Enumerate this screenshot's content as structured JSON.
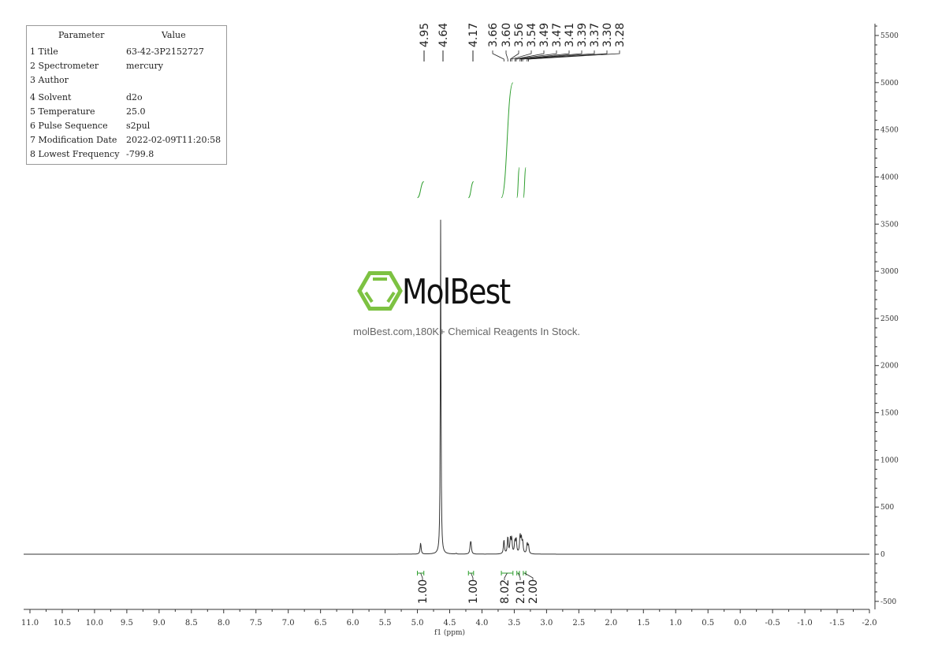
{
  "parameters": {
    "header": [
      "Parameter",
      "Value"
    ],
    "rows": [
      [
        "1 Title",
        "63-42-3P2152727"
      ],
      [
        "2 Spectrometer",
        "mercury"
      ],
      [
        "3 Author",
        ""
      ],
      [
        "4 Solvent",
        "d2o"
      ],
      [
        "5 Temperature",
        "25.0"
      ],
      [
        "6 Pulse Sequence",
        "s2pul"
      ],
      [
        "7 Modification Date",
        "2022-02-09T11:20:58"
      ],
      [
        "8 Lowest Frequency",
        "-799.8"
      ]
    ]
  },
  "watermark": {
    "brand": "MolBest",
    "tagline": "molBest.com,180K+ Chemical Reagents In Stock.",
    "brand_color": "#7dc242"
  },
  "chart_data": {
    "type": "line",
    "xlabel": "f1 (ppm)",
    "ylabel": "",
    "xlim": [
      11.0,
      -2.0
    ],
    "ylim": [
      -600,
      5600
    ],
    "x_ticks": [
      "11.0",
      "10.5",
      "10.0",
      "9.5",
      "9.0",
      "8.5",
      "8.0",
      "7.5",
      "7.0",
      "6.5",
      "6.0",
      "5.5",
      "5.0",
      "4.5",
      "4.0",
      "3.5",
      "3.0",
      "2.5",
      "2.0",
      "1.5",
      "1.0",
      "0.5",
      "0.0",
      "-0.5",
      "-1.0",
      "-1.5",
      "-2.0"
    ],
    "y_ticks": [
      "-500",
      "0",
      "500",
      "1000",
      "1500",
      "2000",
      "2500",
      "3000",
      "3500",
      "4000",
      "4500",
      "5000",
      "5500"
    ],
    "peak_labels": [
      "4.95",
      "4.64",
      "4.17",
      "3.66",
      "3.60",
      "3.56",
      "3.54",
      "3.49",
      "3.47",
      "3.41",
      "3.39",
      "3.37",
      "3.30",
      "3.28"
    ],
    "peaks": [
      {
        "ppm": 4.95,
        "height": 120
      },
      {
        "ppm": 4.64,
        "height": 3560
      },
      {
        "ppm": 4.4,
        "height": 8
      },
      {
        "ppm": 4.18,
        "height": 80
      },
      {
        "ppm": 4.17,
        "height": 95
      },
      {
        "ppm": 3.66,
        "height": 150
      },
      {
        "ppm": 3.6,
        "height": 180
      },
      {
        "ppm": 3.56,
        "height": 150
      },
      {
        "ppm": 3.54,
        "height": 160
      },
      {
        "ppm": 3.49,
        "height": 130
      },
      {
        "ppm": 3.47,
        "height": 150
      },
      {
        "ppm": 3.41,
        "height": 190
      },
      {
        "ppm": 3.39,
        "height": 150
      },
      {
        "ppm": 3.37,
        "height": 120
      },
      {
        "ppm": 3.3,
        "height": 110
      },
      {
        "ppm": 3.28,
        "height": 90
      }
    ],
    "integrals": [
      {
        "from": 5.0,
        "to": 4.9,
        "value": "1.00"
      },
      {
        "from": 4.21,
        "to": 4.13,
        "value": "1.00"
      },
      {
        "from": 3.7,
        "to": 3.52,
        "value": "8.02"
      },
      {
        "from": 3.46,
        "to": 3.42,
        "value": "2.01"
      },
      {
        "from": 3.36,
        "to": 3.32,
        "value": "2.00"
      }
    ],
    "line_color": "#333333",
    "integral_color": "#2e9e2e"
  }
}
